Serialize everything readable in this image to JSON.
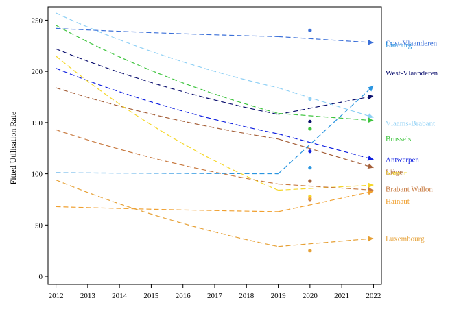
{
  "chart_data": {
    "type": "line",
    "title": "",
    "xlabel": "",
    "ylabel": "Fitted Utilisation Rate",
    "x_ticks": [
      "2012",
      "2013",
      "2014",
      "2015",
      "2016",
      "2017",
      "2018",
      "2019",
      "2020",
      "2021",
      "2022"
    ],
    "y_ticks": [
      "0",
      "50",
      "100",
      "150",
      "200",
      "250"
    ],
    "xlim": [
      2011.75,
      2022.25
    ],
    "ylim": [
      -8,
      263
    ],
    "grid": false,
    "legend": "labels at line ends (right)",
    "series": [
      {
        "name": "Oost-Vlaanderen",
        "color": "#3a6fd8",
        "fitted": [
          [
            2012,
            242
          ],
          [
            2019,
            234
          ],
          [
            2022,
            228
          ]
        ],
        "observed_2020": 240
      },
      {
        "name": "Limburg",
        "color": "#2a95e0",
        "fitted": [
          [
            2012,
            101
          ],
          [
            2019,
            100
          ],
          [
            2022,
            186
          ]
        ],
        "observed_2020": 106
      },
      {
        "name": "West-Vlaanderen",
        "color": "#0b0f6e",
        "fitted": [
          [
            2012,
            222
          ],
          [
            2019,
            158
          ],
          [
            2022,
            176
          ]
        ],
        "observed_2020": 151
      },
      {
        "name": "Vlaams-Brabant",
        "color": "#8fd0f5",
        "fitted": [
          [
            2012,
            257
          ],
          [
            2019,
            184
          ],
          [
            2022,
            155
          ]
        ],
        "observed_2020": 173
      },
      {
        "name": "Brussels",
        "color": "#3ec43e",
        "fitted": [
          [
            2012,
            245
          ],
          [
            2019,
            159
          ],
          [
            2022,
            152
          ]
        ],
        "observed_2020": 144
      },
      {
        "name": "Antwerpen",
        "color": "#1020e0",
        "fitted": [
          [
            2012,
            203
          ],
          [
            2019,
            139
          ],
          [
            2022,
            114
          ]
        ],
        "observed_2020": 122
      },
      {
        "name": "Liège",
        "color": "#a5603a",
        "fitted": [
          [
            2012,
            184
          ],
          [
            2019,
            134
          ],
          [
            2022,
            106
          ]
        ],
        "observed_2020": 93
      },
      {
        "name": "Namur",
        "color": "#f5d72a",
        "fitted": [
          [
            2012,
            215
          ],
          [
            2019,
            84
          ],
          [
            2022,
            89
          ]
        ],
        "observed_2020": 78
      },
      {
        "name": "Brabant Wallon",
        "color": "#c87a40",
        "fitted": [
          [
            2012,
            143
          ],
          [
            2019,
            90
          ],
          [
            2022,
            84
          ]
        ],
        "observed_2020": 75
      },
      {
        "name": "Hainaut",
        "color": "#f0a030",
        "fitted": [
          [
            2012,
            68
          ],
          [
            2019,
            63
          ],
          [
            2022,
            83
          ]
        ],
        "observed_2020": 76
      },
      {
        "name": "Luxembourg",
        "color": "#e6a035",
        "fitted": [
          [
            2012,
            94
          ],
          [
            2019,
            29
          ],
          [
            2022,
            37
          ]
        ],
        "observed_2020": 25
      }
    ]
  }
}
